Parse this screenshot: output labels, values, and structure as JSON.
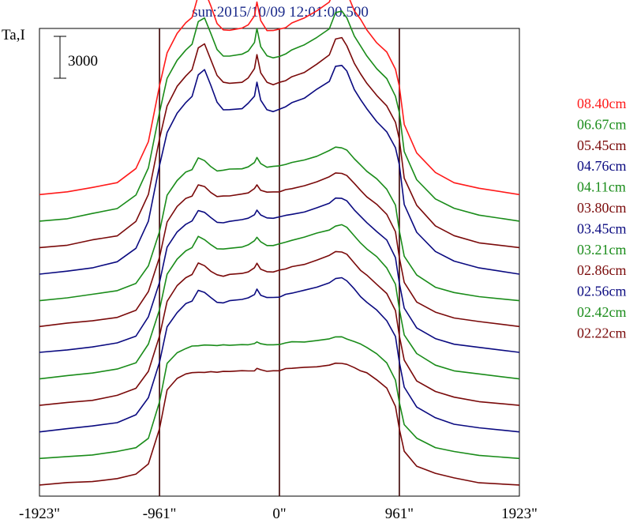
{
  "chart_data": {
    "type": "line",
    "title": "sun:2015/10/09 12:01:00.500",
    "ylabel": "Ta,I",
    "scale_bar_label": "3000",
    "scale_bar_value": 3000,
    "xlim": [
      -1923,
      1923
    ],
    "x_ticks": [
      {
        "value": -1923,
        "label": "-1923\""
      },
      {
        "value": -961,
        "label": "-961\""
      },
      {
        "value": 0,
        "label": "0\""
      },
      {
        "value": 961,
        "label": "961\""
      },
      {
        "value": 1923,
        "label": "1923\""
      }
    ],
    "vlines": [
      -961,
      0,
      961
    ],
    "x": [
      -1923,
      -1700,
      -1500,
      -1300,
      -1150,
      -1050,
      -961,
      -900,
      -820,
      -750,
      -700,
      -650,
      -600,
      -550,
      -500,
      -450,
      -400,
      -300,
      -250,
      -200,
      -180,
      -150,
      -100,
      -50,
      0,
      50,
      100,
      200,
      300,
      400,
      450,
      500,
      540,
      600,
      650,
      700,
      780,
      860,
      930,
      961,
      1000,
      1100,
      1250,
      1400,
      1600,
      1923
    ],
    "shape_top": [
      0,
      200,
      500,
      900,
      1900,
      3800,
      7800,
      10200,
      11500,
      12300,
      12700,
      14300,
      14600,
      13500,
      12300,
      11800,
      11800,
      11900,
      12200,
      12800,
      13800,
      12500,
      11800,
      11700,
      11800,
      12000,
      12300,
      12600,
      13200,
      13800,
      14900,
      15000,
      14500,
      13200,
      12500,
      11800,
      10900,
      10200,
      9000,
      7800,
      5000,
      3000,
      1600,
      900,
      400,
      0
    ],
    "shape_mid": [
      0,
      200,
      400,
      700,
      1200,
      2500,
      5000,
      7500,
      8600,
      9200,
      9400,
      10200,
      10000,
      9600,
      9300,
      9300,
      9400,
      9500,
      9600,
      9900,
      10200,
      9800,
      9600,
      9600,
      9700,
      9800,
      9900,
      10100,
      10400,
      10700,
      11000,
      11000,
      10800,
      10200,
      9700,
      9300,
      8700,
      8000,
      6800,
      5000,
      3200,
      1800,
      1000,
      600,
      300,
      0
    ],
    "shape_low": [
      0,
      150,
      300,
      500,
      800,
      1500,
      4000,
      6800,
      7600,
      7900,
      8000,
      8100,
      8100,
      8100,
      8100,
      8100,
      8150,
      8200,
      8200,
      8200,
      8300,
      8200,
      8200,
      8200,
      8200,
      8300,
      8300,
      8400,
      8500,
      8600,
      8700,
      8700,
      8600,
      8400,
      8200,
      8000,
      7500,
      6900,
      5600,
      4000,
      2400,
      1400,
      800,
      450,
      200,
      0
    ],
    "series": [
      {
        "name": "08.40cm",
        "color": "#ff1a1a",
        "offset": 21600,
        "shape": "top"
      },
      {
        "name": "06.67cm",
        "color": "#1a8c1a",
        "offset": 19700,
        "shape": "top"
      },
      {
        "name": "05.45cm",
        "color": "#7a0a0a",
        "offset": 17800,
        "shape": "top"
      },
      {
        "name": "04.76cm",
        "color": "#0a0a80",
        "offset": 15900,
        "shape": "top"
      },
      {
        "name": "04.11cm",
        "color": "#1a8c1a",
        "offset": 14000,
        "shape": "mid"
      },
      {
        "name": "03.80cm",
        "color": "#7a0a0a",
        "offset": 12150,
        "shape": "mid"
      },
      {
        "name": "03.45cm",
        "color": "#0a0a80",
        "offset": 10300,
        "shape": "mid"
      },
      {
        "name": "03.21cm",
        "color": "#1a8c1a",
        "offset": 8400,
        "shape": "mid"
      },
      {
        "name": "02.86cm",
        "color": "#7a0a0a",
        "offset": 6500,
        "shape": "mid"
      },
      {
        "name": "02.56cm",
        "color": "#0a0a80",
        "offset": 4600,
        "shape": "mid"
      },
      {
        "name": "02.42cm",
        "color": "#1a8c1a",
        "offset": 2700,
        "shape": "low"
      },
      {
        "name": "02.22cm",
        "color": "#7a0a0a",
        "offset": 800,
        "shape": "low"
      }
    ],
    "ylim": [
      0,
      33500
    ],
    "grid": false,
    "legend_placement": "right"
  }
}
